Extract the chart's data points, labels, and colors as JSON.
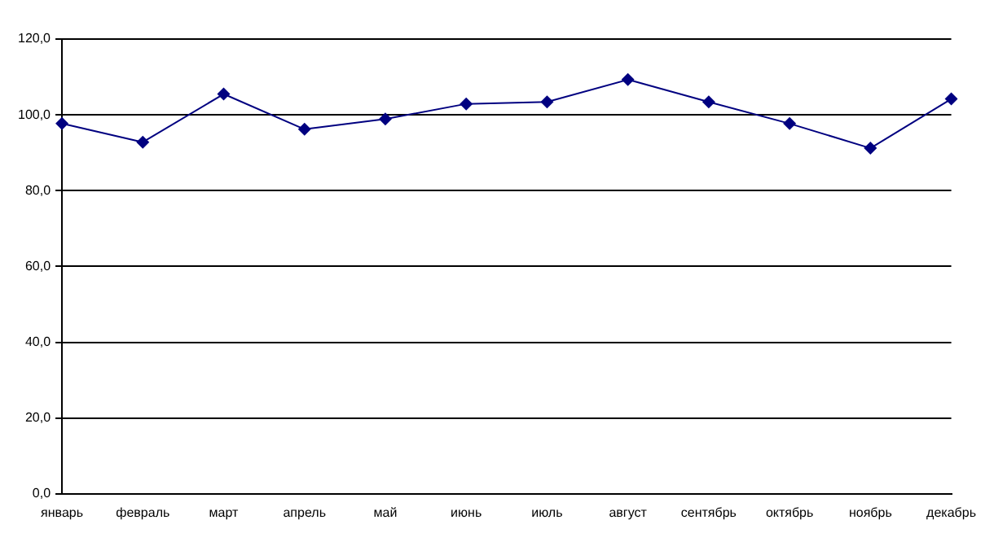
{
  "chart_data": {
    "type": "line",
    "categories": [
      "январь",
      "февраль",
      "март",
      "апрель",
      "май",
      "июнь",
      "июль",
      "август",
      "сентябрь",
      "октябрь",
      "ноябрь",
      "декабрь"
    ],
    "series": [
      {
        "color": "#000080",
        "values": [
          97.7,
          92.8,
          105.5,
          96.2,
          98.9,
          102.9,
          103.4,
          109.3,
          103.4,
          97.7,
          91.2,
          104.2
        ]
      }
    ],
    "ylim": [
      0,
      120
    ],
    "yticks": [
      {
        "value": 0,
        "label": "0,0"
      },
      {
        "value": 20,
        "label": "20,0"
      },
      {
        "value": 40,
        "label": "40,0"
      },
      {
        "value": 60,
        "label": "60,0"
      },
      {
        "value": 80,
        "label": "80,0"
      },
      {
        "value": 100,
        "label": "100,0"
      },
      {
        "value": 120,
        "label": "120,0"
      }
    ],
    "grid": "y",
    "legend": false,
    "marker": "diamond",
    "line_style": "solid"
  }
}
